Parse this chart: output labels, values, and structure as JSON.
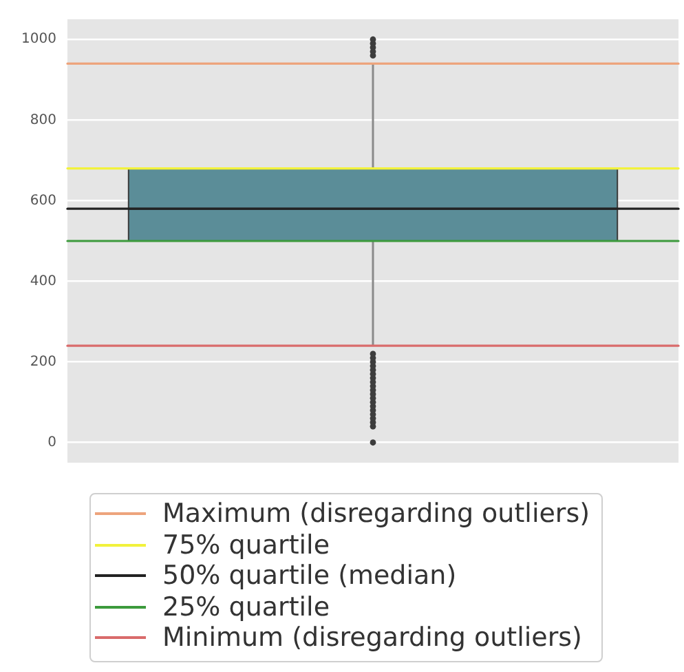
{
  "chart_data": {
    "type": "box",
    "categories": [
      null
    ],
    "series": [
      {
        "color": "#5b8d98",
        "boxes": [
          {
            "low": 240,
            "q1": 500,
            "median": 580,
            "q3": 680,
            "high": 940,
            "outliers": [
              0,
              40,
              50,
              60,
              70,
              80,
              90,
              100,
              110,
              120,
              130,
              140,
              150,
              160,
              170,
              180,
              190,
              200,
              210,
              220,
              960,
              970,
              980,
              990,
              1000
            ]
          }
        ]
      }
    ],
    "ref_lines": [
      {
        "axis": "y",
        "value": 940,
        "label": "Maximum (disregarding outliers)",
        "color": "#eda47c"
      },
      {
        "axis": "y",
        "value": 680,
        "label": "75% quartile",
        "color": "#f2f23c"
      },
      {
        "axis": "y",
        "value": 580,
        "label": "50% quartile (median)",
        "color": "#222222"
      },
      {
        "axis": "y",
        "value": 500,
        "label": "25% quartile",
        "color": "#3c9a3c"
      },
      {
        "axis": "y",
        "value": 240,
        "label": "Minimum (disregarding outliers)",
        "color": "#d96b6b"
      }
    ],
    "ylim": [
      -50,
      1050
    ],
    "yticks": [
      0,
      200,
      400,
      600,
      800,
      1000
    ],
    "grid": "y",
    "legend": "bottom",
    "tick_labels": "y"
  }
}
